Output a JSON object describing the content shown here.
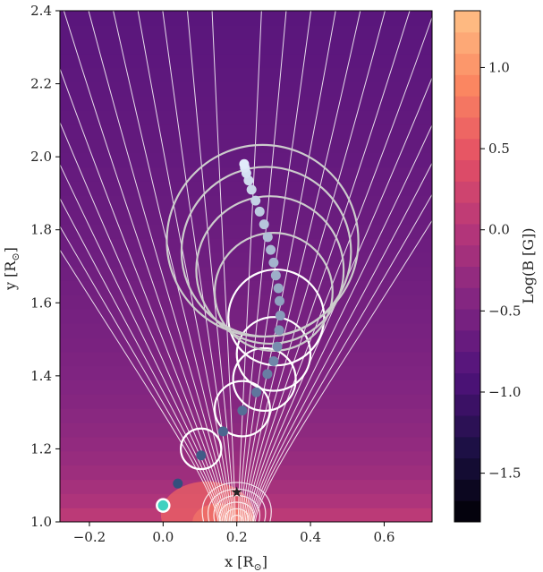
{
  "chart_data": {
    "type": "heatmap",
    "title": "",
    "xlabel": "x [R",
    "ylabel": "y [R",
    "label_sun_symbol": "⊙",
    "label_suffix": "]",
    "xlim": [
      -0.28,
      0.73
    ],
    "ylim": [
      1.0,
      2.4
    ],
    "xticks": [
      -0.2,
      0.0,
      0.2,
      0.4,
      0.6
    ],
    "xtick_labels": [
      "−0.2",
      "0.0",
      "0.2",
      "0.4",
      "0.6"
    ],
    "yticks": [
      1.0,
      1.2,
      1.4,
      1.6,
      1.8,
      2.0,
      2.2,
      2.4
    ],
    "ytick_labels": [
      "1.0",
      "1.2",
      "1.4",
      "1.6",
      "1.8",
      "2.0",
      "2.2",
      "2.4"
    ],
    "colorbar": {
      "label": "Log(B [G])",
      "range": [
        -1.8,
        1.35
      ],
      "ticks": [
        -1.5,
        -1.0,
        -0.5,
        0.0,
        0.5,
        1.0
      ],
      "tick_labels": [
        "−1.5",
        "−1.0",
        "−0.5",
        "0.0",
        "0.5",
        "1.0"
      ],
      "colors": [
        "#000004",
        "#1c1044",
        "#4f127b",
        "#812581",
        "#b5367a",
        "#e55064",
        "#fb8761",
        "#fec287"
      ]
    },
    "field_lines_present": true,
    "source_marker": {
      "x": 0.2,
      "y": 1.08,
      "symbol": "★"
    },
    "cme_track": [
      {
        "x": 0.0,
        "y": 1.045
      },
      {
        "x": 0.04,
        "y": 1.105
      },
      {
        "x": 0.103,
        "y": 1.182
      },
      {
        "x": 0.163,
        "y": 1.248
      },
      {
        "x": 0.215,
        "y": 1.305
      },
      {
        "x": 0.253,
        "y": 1.355
      },
      {
        "x": 0.283,
        "y": 1.405
      },
      {
        "x": 0.3,
        "y": 1.44
      },
      {
        "x": 0.31,
        "y": 1.48
      },
      {
        "x": 0.315,
        "y": 1.525
      },
      {
        "x": 0.318,
        "y": 1.565
      },
      {
        "x": 0.316,
        "y": 1.605
      },
      {
        "x": 0.313,
        "y": 1.64
      },
      {
        "x": 0.306,
        "y": 1.675
      },
      {
        "x": 0.3,
        "y": 1.71
      },
      {
        "x": 0.292,
        "y": 1.745
      },
      {
        "x": 0.284,
        "y": 1.78
      },
      {
        "x": 0.274,
        "y": 1.815
      },
      {
        "x": 0.262,
        "y": 1.85
      },
      {
        "x": 0.251,
        "y": 1.88
      },
      {
        "x": 0.24,
        "y": 1.91
      },
      {
        "x": 0.232,
        "y": 1.935
      },
      {
        "x": 0.226,
        "y": 1.955
      },
      {
        "x": 0.222,
        "y": 1.97
      },
      {
        "x": 0.22,
        "y": 1.98
      }
    ],
    "cme_circles": [
      {
        "x": 0.103,
        "y": 1.2,
        "r": 0.055,
        "color": "white"
      },
      {
        "x": 0.215,
        "y": 1.31,
        "r": 0.075,
        "color": "white"
      },
      {
        "x": 0.275,
        "y": 1.39,
        "r": 0.085,
        "color": "white"
      },
      {
        "x": 0.3,
        "y": 1.46,
        "r": 0.1,
        "color": "white"
      },
      {
        "x": 0.307,
        "y": 1.56,
        "r": 0.13,
        "color": "white"
      },
      {
        "x": 0.3,
        "y": 1.63,
        "r": 0.16,
        "color": "#cccccc"
      },
      {
        "x": 0.29,
        "y": 1.69,
        "r": 0.2,
        "color": "#cccccc"
      },
      {
        "x": 0.28,
        "y": 1.74,
        "r": 0.23,
        "color": "#cccccc"
      },
      {
        "x": 0.27,
        "y": 1.77,
        "r": 0.26,
        "color": "#cccccc"
      }
    ]
  }
}
